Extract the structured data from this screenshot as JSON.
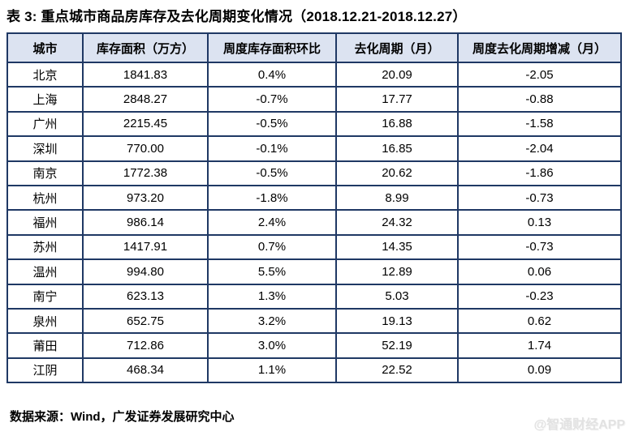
{
  "page": {
    "title": "表 3: 重点城市商品房库存及去化周期变化情况（2018.12.21-2018.12.27）",
    "source_note": "数据来源：Wind，广发证券发展研究中心",
    "watermark": "@智通财经APP"
  },
  "table": {
    "headers": [
      "城市",
      "库存面积（万方）",
      "周度库存面积环比",
      "去化周期（月）",
      "周度去化周期增减（月）"
    ],
    "rows": [
      [
        "北京",
        "1841.83",
        "0.4%",
        "20.09",
        "-2.05"
      ],
      [
        "上海",
        "2848.27",
        "-0.7%",
        "17.77",
        "-0.88"
      ],
      [
        "广州",
        "2215.45",
        "-0.5%",
        "16.88",
        "-1.58"
      ],
      [
        "深圳",
        "770.00",
        "-0.1%",
        "16.85",
        "-2.04"
      ],
      [
        "南京",
        "1772.38",
        "-0.5%",
        "20.62",
        "-1.86"
      ],
      [
        "杭州",
        "973.20",
        "-1.8%",
        "8.99",
        "-0.73"
      ],
      [
        "福州",
        "986.14",
        "2.4%",
        "24.32",
        "0.13"
      ],
      [
        "苏州",
        "1417.91",
        "0.7%",
        "14.35",
        "-0.73"
      ],
      [
        "温州",
        "994.80",
        "5.5%",
        "12.89",
        "0.06"
      ],
      [
        "南宁",
        "623.13",
        "1.3%",
        "5.03",
        "-0.23"
      ],
      [
        "泉州",
        "652.75",
        "3.2%",
        "19.13",
        "0.62"
      ],
      [
        "莆田",
        "712.86",
        "3.0%",
        "52.19",
        "1.74"
      ],
      [
        "江阴",
        "468.34",
        "1.1%",
        "22.52",
        "0.09"
      ]
    ]
  },
  "colors": {
    "header_bg": "#dce3f1",
    "border": "#1f3864",
    "text": "#000000",
    "watermark": "#e2e2e2"
  },
  "chart_data": {
    "type": "table",
    "title": "表 3: 重点城市商品房库存及去化周期变化情况（2018.12.21-2018.12.27）",
    "columns": [
      "城市",
      "库存面积（万方）",
      "周度库存面积环比",
      "去化周期（月）",
      "周度去化周期增减（月）"
    ],
    "rows": [
      {
        "城市": "北京",
        "库存面积_万方": 1841.83,
        "周度库存面积环比": "0.4%",
        "去化周期_月": 20.09,
        "周度去化周期增减_月": -2.05
      },
      {
        "城市": "上海",
        "库存面积_万方": 2848.27,
        "周度库存面积环比": "-0.7%",
        "去化周期_月": 17.77,
        "周度去化周期增减_月": -0.88
      },
      {
        "城市": "广州",
        "库存面积_万方": 2215.45,
        "周度库存面积环比": "-0.5%",
        "去化周期_月": 16.88,
        "周度去化周期增减_月": -1.58
      },
      {
        "城市": "深圳",
        "库存面积_万方": 770.0,
        "周度库存面积环比": "-0.1%",
        "去化周期_月": 16.85,
        "周度去化周期增减_月": -2.04
      },
      {
        "城市": "南京",
        "库存面积_万方": 1772.38,
        "周度库存面积环比": "-0.5%",
        "去化周期_月": 20.62,
        "周度去化周期增减_月": -1.86
      },
      {
        "城市": "杭州",
        "库存面积_万方": 973.2,
        "周度库存面积环比": "-1.8%",
        "去化周期_月": 8.99,
        "周度去化周期增减_月": -0.73
      },
      {
        "城市": "福州",
        "库存面积_万方": 986.14,
        "周度库存面积环比": "2.4%",
        "去化周期_月": 24.32,
        "周度去化周期增减_月": 0.13
      },
      {
        "城市": "苏州",
        "库存面积_万方": 1417.91,
        "周度库存面积环比": "0.7%",
        "去化周期_月": 14.35,
        "周度去化周期增减_月": -0.73
      },
      {
        "城市": "温州",
        "库存面积_万方": 994.8,
        "周度库存面积环比": "5.5%",
        "去化周期_月": 12.89,
        "周度去化周期增减_月": 0.06
      },
      {
        "城市": "南宁",
        "库存面积_万方": 623.13,
        "周度库存面积环比": "1.3%",
        "去化周期_月": 5.03,
        "周度去化周期增减_月": -0.23
      },
      {
        "城市": "泉州",
        "库存面积_万方": 652.75,
        "周度库存面积环比": "3.2%",
        "去化周期_月": 19.13,
        "周度去化周期增减_月": 0.62
      },
      {
        "城市": "莆田",
        "库存面积_万方": 712.86,
        "周度库存面积环比": "3.0%",
        "去化周期_月": 52.19,
        "周度去化周期增减_月": 1.74
      },
      {
        "城市": "江阴",
        "库存面积_万方": 468.34,
        "周度库存面积环比": "1.1%",
        "去化周期_月": 22.52,
        "周度去化周期增减_月": 0.09
      }
    ]
  }
}
